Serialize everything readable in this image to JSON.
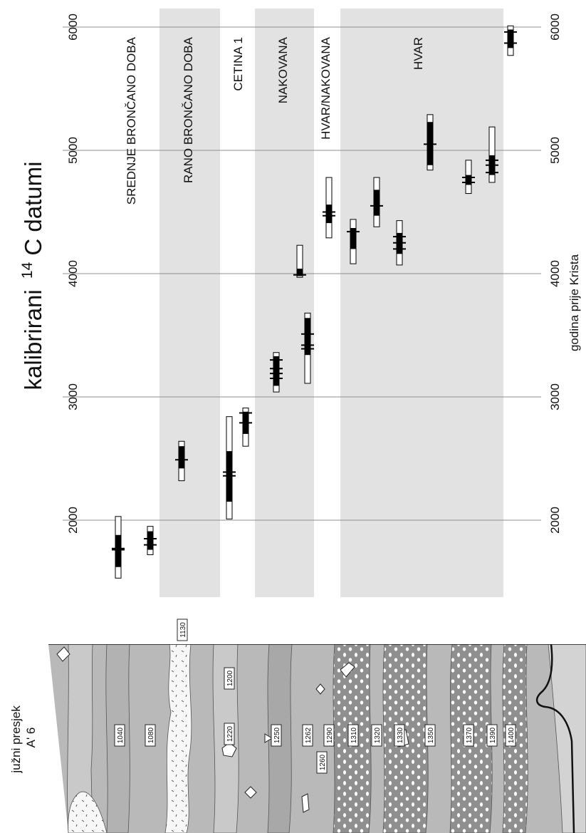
{
  "chart_data": {
    "type": "range",
    "orientation": "rotated-90-ccw",
    "title_prefix": "kalibrirani",
    "title_sup": "14",
    "title_suffix": "C datumi",
    "xlabel": "godina prije Krista",
    "xlim": [
      1300,
      6100
    ],
    "ticks": [
      2000,
      3000,
      4000,
      5000,
      6000
    ],
    "grid": true,
    "bands": [
      {
        "label": "SREDNJE BRONČANO DOBA",
        "shaded": false
      },
      {
        "label": "RANO BRONČANO DOBA",
        "shaded": true
      },
      {
        "label": "CETINA 1",
        "shaded": false
      },
      {
        "label": "NAKOVANA",
        "shaded": true
      },
      {
        "label": "HVAR/NAKOVANA",
        "shaded": false
      },
      {
        "label": "HVAR",
        "shaded": true
      }
    ],
    "samples": [
      {
        "band": 0,
        "sigma2": [
          1530,
          2030
        ],
        "sigma1": [
          1620,
          1880
        ],
        "peaks": [
          1760,
          1770
        ]
      },
      {
        "band": 0,
        "sigma2": [
          1720,
          1950
        ],
        "sigma1": [
          1760,
          1910
        ],
        "peaks": [
          1800,
          1850
        ]
      },
      {
        "band": 1,
        "sigma2": [
          2320,
          2640
        ],
        "sigma1": [
          2420,
          2600
        ],
        "peaks": [
          2490
        ]
      },
      {
        "band": 2,
        "sigma2": [
          2010,
          2840
        ],
        "sigma1": [
          2150,
          2560
        ],
        "peaks": [
          2360,
          2390
        ]
      },
      {
        "band": 2,
        "sigma2": [
          2600,
          2910
        ],
        "sigma1": [
          2700,
          2880
        ],
        "peaks": [
          2790,
          2870
        ]
      },
      {
        "band": 3,
        "sigma2": [
          3040,
          3360
        ],
        "sigma1": [
          3090,
          3330
        ],
        "peaks": [
          3150,
          3190,
          3230,
          3300
        ]
      },
      {
        "band": 3,
        "sigma2": [
          3110,
          3680
        ],
        "sigma1": [
          3340,
          3640
        ],
        "peaks": [
          3390,
          3420,
          3510
        ]
      },
      {
        "band": 4,
        "sigma2": [
          3970,
          4230
        ],
        "sigma1": [
          3980,
          4040
        ],
        "peaks": [
          3990
        ]
      },
      {
        "band": 4,
        "sigma2": [
          4290,
          4780
        ],
        "sigma1": [
          4410,
          4560
        ],
        "peaks": [
          4470,
          4500
        ]
      },
      {
        "band": 5,
        "sigma2": [
          4080,
          4440
        ],
        "sigma1": [
          4200,
          4370
        ],
        "peaks": [
          4340
        ]
      },
      {
        "band": 5,
        "sigma2": [
          4380,
          4780
        ],
        "sigma1": [
          4470,
          4680
        ],
        "peaks": [
          4550
        ]
      },
      {
        "band": 5,
        "sigma2": [
          4070,
          4430
        ],
        "sigma1": [
          4160,
          4330
        ],
        "peaks": [
          4200,
          4250,
          4300
        ]
      },
      {
        "band": 5,
        "sigma2": [
          4840,
          5290
        ],
        "sigma1": [
          4880,
          5230
        ],
        "peaks": [
          5050
        ]
      },
      {
        "band": 5,
        "sigma2": [
          4650,
          4920
        ],
        "sigma1": [
          4720,
          4800
        ],
        "peaks": [
          4740,
          4780
        ]
      },
      {
        "band": 5,
        "sigma2": [
          4740,
          5190
        ],
        "sigma1": [
          4800,
          4960
        ],
        "peaks": [
          4820,
          4880,
          4920
        ]
      },
      {
        "band": 5,
        "sigma2": [
          5770,
          6010
        ],
        "sigma1": [
          5830,
          5980
        ],
        "peaks": [
          5870,
          5960
        ]
      }
    ]
  },
  "section": {
    "title_line1": "južni presjek",
    "title_line2": "A' 6",
    "layer_top_label": "1130",
    "layer_labels": [
      "1040",
      "1080",
      "1200",
      "1220",
      "1250",
      "1262",
      "1260",
      "1290",
      "1310",
      "1320",
      "1330",
      "1350",
      "1370",
      "1390",
      "1400"
    ]
  },
  "colors": {
    "band_shade": "#e2e2e2",
    "grid": "#8f8f8f",
    "bar_black": "#000000",
    "section_base": "#b9b9b9",
    "section_light": "#d3d3d3",
    "section_dark": "#8f8f8f",
    "section_white": "#f7f7f7"
  }
}
